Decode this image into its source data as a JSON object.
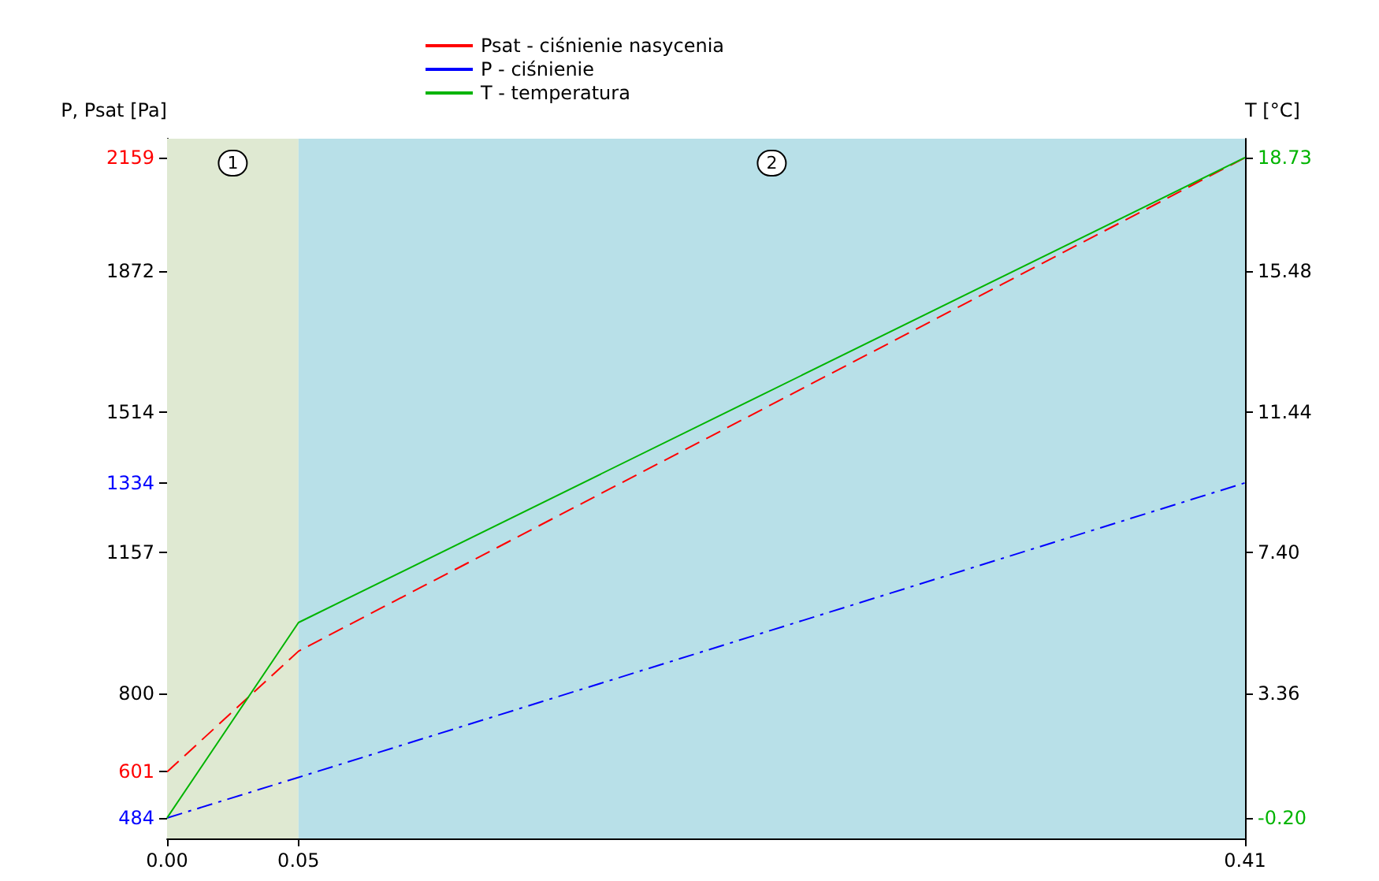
{
  "chart_data": {
    "type": "line",
    "xlabel": null,
    "ylabel": "P, Psat [Pa]",
    "y2label": "T [°C]",
    "x": [
      0,
      0.05,
      0.41
    ],
    "series": [
      {
        "name": "Psat - ciśnienie nasycenia",
        "color": "#ff0000",
        "line_style": "dashed",
        "values": [
          601,
          907,
          2159
        ]
      },
      {
        "name": "P - ciśnienie",
        "color": "#0000ff",
        "line_style": "dashdot",
        "values": [
          484,
          587,
          1334
        ]
      },
      {
        "name": "T - temperatura",
        "color": "#00b400",
        "line_style": "solid",
        "axis": "y2",
        "values": [
          -0.2,
          5.4,
          18.73
        ]
      }
    ],
    "xlim": [
      0,
      0.41
    ],
    "xticks": [
      {
        "value": 0,
        "label": "0.00"
      },
      {
        "value": 0.05,
        "label": "0.05"
      },
      {
        "value": 0.41,
        "label": "0.41"
      }
    ],
    "ylim": [
      432,
      2207
    ],
    "yticks": [
      484,
      601,
      800,
      1157,
      1334,
      1514,
      1872,
      2159
    ],
    "y2lim": [
      -0.79,
      19.27
    ],
    "y2ticks": [
      {
        "value": -0.2,
        "label": "-0.20"
      },
      {
        "value": 3.36,
        "label": "3.36"
      },
      {
        "value": 7.4,
        "label": "7.40"
      },
      {
        "value": 11.44,
        "label": "11.44"
      },
      {
        "value": 15.48,
        "label": "15.48"
      },
      {
        "value": 18.73,
        "label": "18.73"
      }
    ],
    "bands": [
      {
        "axis": "x",
        "from": 0,
        "to": 0.05,
        "label": "1",
        "color": "#dfe9d2"
      },
      {
        "axis": "x",
        "from": 0.05,
        "to": 0.41,
        "label": "2",
        "color": "#b8e0e8"
      }
    ],
    "legend": "top",
    "marker": "none"
  }
}
